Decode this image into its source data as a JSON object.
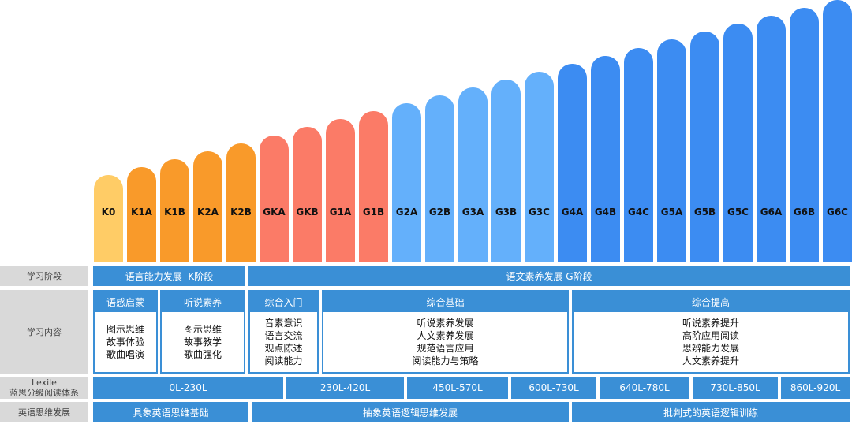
{
  "levels": [
    "K0",
    "K1A",
    "K1B",
    "K2A",
    "K2B",
    "GKA",
    "GKB",
    "G1A",
    "G1B",
    "G2A",
    "G2B",
    "G3A",
    "G3B",
    "G3C",
    "G4A",
    "G4B",
    "G4C",
    "G5A",
    "G5B",
    "G5C",
    "G6A",
    "G6B",
    "G6C"
  ],
  "colors": {
    "k0": "#ffcc66",
    "k": "#f99a2a",
    "gk": "#fb7b67",
    "g2": "#64b0fb",
    "g4": "#3c8cf2",
    "row_blue": "#3a8fd6",
    "row_label_bg": "#d9d9d9"
  },
  "rows": {
    "stage": {
      "label": "学习阶段",
      "cells": [
        "语言能力发展  K阶段",
        "语文素养发展 G阶段"
      ]
    },
    "content": {
      "label": "学习内容",
      "blocks": [
        {
          "title": "语感启蒙",
          "lines": [
            "图示思维",
            "故事体验",
            "歌曲唱演"
          ]
        },
        {
          "title": "听说素养",
          "lines": [
            "图示思维",
            "故事教学",
            "歌曲强化"
          ]
        },
        {
          "title": "综合入门",
          "lines": [
            "音素意识",
            "语言交流",
            "观点陈述",
            "阅读能力"
          ]
        },
        {
          "title": "综合基础",
          "lines": [
            "听说素养发展",
            "人文素养发展",
            "规范语言应用",
            "阅读能力与策略"
          ]
        },
        {
          "title": "综合提高",
          "lines": [
            "听说素养提升",
            "高阶应用阅读",
            "思辨能力发展",
            "人文素养提升"
          ]
        }
      ]
    },
    "lexile": {
      "label_line1": "Lexile",
      "label_line2": "蓝思分级阅读体系",
      "cells": [
        "0L-230L",
        "230L-420L",
        "450L-570L",
        "600L-730L",
        "640L-780L",
        "730L-850L",
        "860L-920L"
      ]
    },
    "thinking": {
      "label": "英语思维发展",
      "cells": [
        "具象英语思维基础",
        "抽象英语逻辑思维发展",
        "批判式的英语逻辑训练"
      ]
    }
  }
}
